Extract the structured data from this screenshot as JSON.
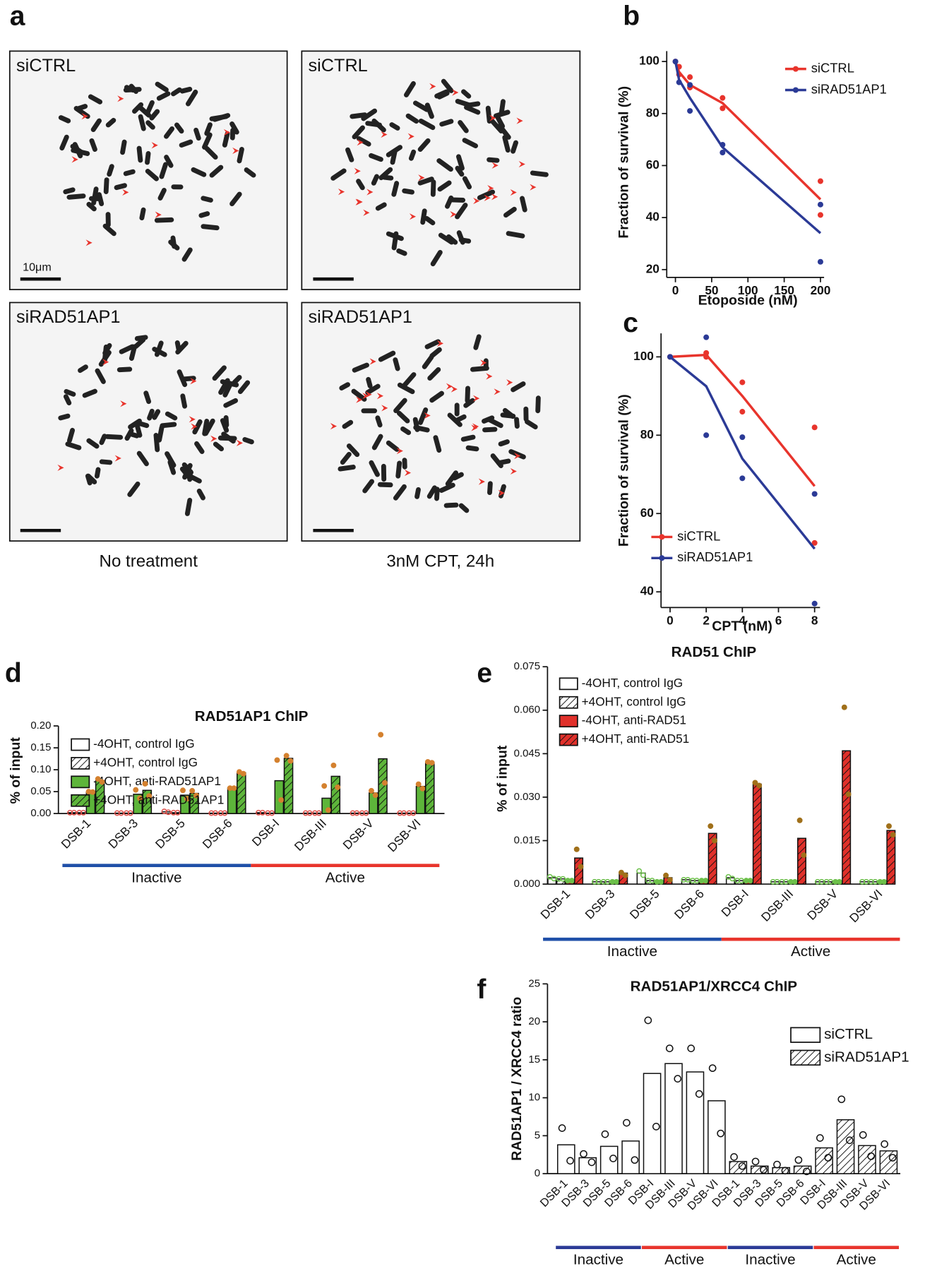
{
  "panels": [
    "a",
    "b",
    "c",
    "d",
    "e",
    "f"
  ],
  "micrographs": {
    "titles": [
      "siCTRL",
      "siCTRL",
      "siRAD51AP1",
      "siRAD51AP1"
    ],
    "scale_bar": "10μm",
    "conditions": [
      "No treatment",
      "3nM CPT, 24h"
    ]
  },
  "chart_data": [
    {
      "type": "line",
      "xlabel": "Etoposide (nM)",
      "ylabel": "Fraction of survival (%)",
      "xlim": [
        -12,
        205
      ],
      "xticks": [
        0,
        50,
        100,
        150,
        200
      ],
      "ylim": [
        17,
        104
      ],
      "yticks": [
        20,
        40,
        60,
        80,
        100
      ],
      "legend": "upper right",
      "series": [
        {
          "name": "siCTRL",
          "color": "#e8342c",
          "x": [
            0,
            5,
            20,
            65,
            200
          ],
          "values": [
            100,
            96,
            91,
            84,
            47
          ],
          "points": {
            "x": [
              0,
              5,
              5,
              20,
              20,
              65,
              65,
              200,
              200
            ],
            "y": [
              100,
              98,
              95,
              94,
              90,
              86,
              82,
              54,
              41
            ]
          }
        },
        {
          "name": "siRAD51AP1",
          "color": "#2b3a96",
          "x": [
            0,
            5,
            20,
            65,
            200
          ],
          "values": [
            100,
            93,
            86,
            67,
            34
          ],
          "points": {
            "x": [
              0,
              5,
              20,
              20,
              65,
              65,
              200,
              200
            ],
            "y": [
              100,
              92,
              91,
              81,
              68,
              65,
              45,
              23
            ]
          }
        }
      ]
    },
    {
      "type": "line",
      "xlabel": "CPT (nM)",
      "ylabel": "Fraction of survival (%)",
      "xlim": [
        -0.5,
        8.3
      ],
      "xticks": [
        0,
        2,
        4,
        6,
        8
      ],
      "ylim": [
        36,
        106
      ],
      "yticks": [
        40,
        60,
        80,
        100
      ],
      "legend": "lower left",
      "series": [
        {
          "name": "siCTRL",
          "color": "#e8342c",
          "x": [
            0,
            2,
            4,
            8
          ],
          "values": [
            100,
            100.5,
            90,
            67
          ],
          "points": {
            "x": [
              0,
              2,
              2,
              4,
              4,
              8,
              8
            ],
            "y": [
              100,
              101,
              100,
              93.5,
              86,
              82,
              52.5
            ]
          }
        },
        {
          "name": "siRAD51AP1",
          "color": "#2b3a96",
          "x": [
            0,
            2,
            4,
            8
          ],
          "values": [
            100,
            92.5,
            74,
            51
          ],
          "points": {
            "x": [
              0,
              2,
              2,
              4,
              4,
              8,
              8
            ],
            "y": [
              100,
              105,
              80,
              79.5,
              69,
              65,
              37
            ]
          }
        }
      ]
    },
    {
      "type": "bar",
      "title": "RAD51AP1 ChIP",
      "ylabel": "% of input",
      "categories": [
        "DSB-1",
        "DSB-3",
        "DSB-5",
        "DSB-6",
        "DSB-I",
        "DSB-III",
        "DSB-V",
        "DSB-VI"
      ],
      "ylim": [
        0,
        0.2
      ],
      "yticks": [
        {
          "value": 0,
          "label": "0.00"
        },
        {
          "value": 0.05,
          "label": "0.05"
        },
        {
          "value": 0.1,
          "label": "0.10"
        },
        {
          "value": 0.15,
          "label": "0.15"
        },
        {
          "value": 0.2,
          "label": "0.20"
        }
      ],
      "groups": [
        {
          "name": "Inactive",
          "color": "#1f4fa8",
          "span": [
            0,
            3
          ]
        },
        {
          "name": "Active",
          "color": "#e8342c",
          "span": [
            4,
            7
          ]
        }
      ],
      "series": [
        {
          "name": "-4OHT, control IgG",
          "color": "#ffffff",
          "hatch": false,
          "point_color": "#e0504a",
          "values": [
            0.002,
            0.001,
            0.004,
            0.001,
            0.002,
            0.001,
            0.001,
            0.001
          ],
          "replicates": [
            [
              0.002,
              0.002
            ],
            [
              0.001,
              0.001
            ],
            [
              0.005,
              0.003
            ],
            [
              0.001,
              0.001
            ],
            [
              0.002,
              0.002
            ],
            [
              0.001,
              0.001
            ],
            [
              0.001,
              0.001
            ],
            [
              0.001,
              0.001
            ]
          ]
        },
        {
          "name": "+4OHT, control IgG",
          "color": "#ffffff",
          "hatch": true,
          "point_color": "#e0504a",
          "values": [
            0.002,
            0.001,
            0.002,
            0.001,
            0.001,
            0.001,
            0.001,
            0.001
          ],
          "replicates": [
            [
              0.002,
              0.002
            ],
            [
              0.001,
              0.001
            ],
            [
              0.002,
              0.002
            ],
            [
              0.001,
              0.001
            ],
            [
              0.001,
              0.001
            ],
            [
              0.001,
              0.001
            ],
            [
              0.001,
              0.001
            ],
            [
              0.001,
              0.001
            ]
          ]
        },
        {
          "name": "-4OHT, anti-RAD51AP1",
          "color": "#5db53a",
          "hatch": false,
          "point_color": "#d4812f",
          "values": [
            0.049,
            0.044,
            0.042,
            0.058,
            0.075,
            0.035,
            0.047,
            0.062
          ],
          "replicates": [
            [
              0.05,
              0.049
            ],
            [
              0.054,
              0.035
            ],
            [
              0.053,
              0.034
            ],
            [
              0.058,
              0.058
            ],
            [
              0.122,
              0.031
            ],
            [
              0.063,
              0.008
            ],
            [
              0.052,
              0.042
            ],
            [
              0.067,
              0.057
            ]
          ]
        },
        {
          "name": "+4OHT, anti-RAD51AP1",
          "color": "#5db53a",
          "hatch": true,
          "point_color": "#d4812f",
          "values": [
            0.075,
            0.053,
            0.046,
            0.093,
            0.126,
            0.085,
            0.125,
            0.117
          ],
          "replicates": [
            [
              0.079,
              0.072
            ],
            [
              0.068,
              0.04
            ],
            [
              0.052,
              0.041
            ],
            [
              0.095,
              0.091
            ],
            [
              0.132,
              0.12
            ],
            [
              0.11,
              0.06
            ],
            [
              0.18,
              0.07
            ],
            [
              0.118,
              0.116
            ]
          ]
        }
      ]
    },
    {
      "type": "bar",
      "title": "RAD51 ChIP",
      "ylabel": "% of input",
      "categories": [
        "DSB-1",
        "DSB-3",
        "DSB-5",
        "DSB-6",
        "DSB-I",
        "DSB-III",
        "DSB-V",
        "DSB-VI"
      ],
      "ylim": [
        0,
        0.075
      ],
      "yticks": [
        {
          "value": 0,
          "label": "0.000"
        },
        {
          "value": 0.015,
          "label": "0.015"
        },
        {
          "value": 0.03,
          "label": "0.030"
        },
        {
          "value": 0.045,
          "label": "0.045"
        },
        {
          "value": 0.06,
          "label": "0.060"
        },
        {
          "value": 0.075,
          "label": "0.075"
        }
      ],
      "groups": [
        {
          "name": "Inactive",
          "color": "#1f4fa8",
          "span": [
            0,
            3
          ]
        },
        {
          "name": "Active",
          "color": "#e8342c",
          "span": [
            4,
            7
          ]
        }
      ],
      "series": [
        {
          "name": "-4OHT, control IgG",
          "color": "#ffffff",
          "hatch": false,
          "point_color": "#6cc04a",
          "values": [
            0.0022,
            0.0008,
            0.0038,
            0.0015,
            0.0022,
            0.0008,
            0.0008,
            0.0008
          ],
          "replicates": [
            [
              0.0025,
              0.0019
            ],
            [
              0.0008,
              0.0008
            ],
            [
              0.0045,
              0.0031
            ],
            [
              0.0015,
              0.0015
            ],
            [
              0.0025,
              0.0019
            ],
            [
              0.0008,
              0.0008
            ],
            [
              0.0008,
              0.0008
            ],
            [
              0.0008,
              0.0008
            ]
          ]
        },
        {
          "name": "+4OHT, control IgG",
          "color": "#ffffff",
          "hatch": true,
          "point_color": "#6cc04a",
          "values": [
            0.0018,
            0.0008,
            0.0012,
            0.0012,
            0.0012,
            0.0008,
            0.0008,
            0.0008
          ],
          "replicates": [
            [
              0.0018,
              0.0018
            ],
            [
              0.0008,
              0.0008
            ],
            [
              0.0012,
              0.0012
            ],
            [
              0.0012,
              0.0012
            ],
            [
              0.0012,
              0.0012
            ],
            [
              0.0008,
              0.0008
            ],
            [
              0.0008,
              0.0008
            ],
            [
              0.0008,
              0.0008
            ]
          ]
        },
        {
          "name": "-4OHT, anti-RAD51",
          "color": "#e0302a",
          "hatch": false,
          "point_color": "#6cc04a",
          "values": [
            0.0012,
            0.0008,
            0.0008,
            0.0012,
            0.0012,
            0.0008,
            0.0008,
            0.0008
          ],
          "replicates": [
            [
              0.0012,
              0.0012
            ],
            [
              0.0008,
              0.0008
            ],
            [
              0.0008,
              0.0008
            ],
            [
              0.0012,
              0.0012
            ],
            [
              0.0012,
              0.0012
            ],
            [
              0.0008,
              0.0008
            ],
            [
              0.0008,
              0.0008
            ],
            [
              0.0008,
              0.0008
            ]
          ]
        },
        {
          "name": "+4OHT, anti-RAD51",
          "color": "#e0302a",
          "hatch": true,
          "point_color": "#a0701a",
          "values": [
            0.009,
            0.0038,
            0.0022,
            0.0175,
            0.0345,
            0.0158,
            0.046,
            0.0185
          ],
          "replicates": [
            [
              0.012,
              0.006
            ],
            [
              0.004,
              0.003
            ],
            [
              0.003,
              0.0015
            ],
            [
              0.02,
              0.015
            ],
            [
              0.035,
              0.034
            ],
            [
              0.022,
              0.01
            ],
            [
              0.061,
              0.031
            ],
            [
              0.02,
              0.017
            ]
          ]
        }
      ]
    },
    {
      "type": "bar",
      "title": "RAD51AP1/XRCC4 ChIP",
      "ylabel": "RAD51AP1 / XRCC4 ratio",
      "blocks": true,
      "categories": [
        "DSB-1",
        "DSB-3",
        "DSB-5",
        "DSB-6",
        "DSB-I",
        "DSB-III",
        "DSB-V",
        "DSB-VI"
      ],
      "ylim": [
        0,
        25
      ],
      "yticks": [
        0,
        5,
        10,
        15,
        20,
        25
      ],
      "groups": [
        {
          "name": "Inactive",
          "color": "#2b3a96",
          "span": [
            0,
            3
          ]
        },
        {
          "name": "Active",
          "color": "#e8342c",
          "span": [
            4,
            7
          ]
        }
      ],
      "series": [
        {
          "name": "siCTRL",
          "color": "#ffffff",
          "hatch": false,
          "point_color": "#111111",
          "values": [
            3.8,
            2.1,
            3.6,
            4.3,
            13.2,
            14.5,
            13.4,
            9.6
          ],
          "replicates": [
            [
              6.0,
              1.7
            ],
            [
              2.6,
              1.5
            ],
            [
              5.2,
              2.0
            ],
            [
              6.7,
              1.8
            ],
            [
              20.2,
              6.2
            ],
            [
              16.5,
              12.5
            ],
            [
              16.5,
              10.5
            ],
            [
              13.9,
              5.3
            ]
          ]
        },
        {
          "name": "siRAD51AP1",
          "color": "#ffffff",
          "hatch": true,
          "point_color": "#111111",
          "values": [
            1.6,
            1.0,
            0.8,
            1.0,
            3.4,
            7.1,
            3.7,
            3.0
          ],
          "replicates": [
            [
              2.2,
              1.0
            ],
            [
              1.6,
              0.5
            ],
            [
              1.2,
              0.4
            ],
            [
              1.8,
              0.3
            ],
            [
              4.7,
              2.1
            ],
            [
              9.8,
              4.4
            ],
            [
              5.1,
              2.3
            ],
            [
              3.9,
              2.1
            ]
          ]
        }
      ]
    }
  ]
}
